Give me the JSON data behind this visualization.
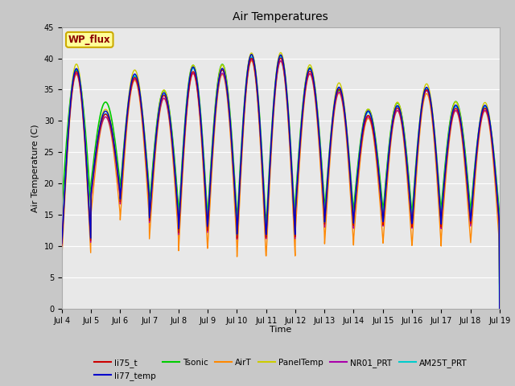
{
  "title": "Air Temperatures",
  "xlabel": "Time",
  "ylabel": "Air Temperature (C)",
  "ylim": [
    0,
    45
  ],
  "yticks": [
    0,
    5,
    10,
    15,
    20,
    25,
    30,
    35,
    40,
    45
  ],
  "date_start": 4,
  "date_end": 19,
  "n_days": 15,
  "site_label": "WP_flux",
  "series": {
    "li75_t": {
      "color": "#cc0000",
      "lw": 1.0,
      "zorder": 3
    },
    "li77_temp": {
      "color": "#0000cc",
      "lw": 1.0,
      "zorder": 4
    },
    "Tsonic": {
      "color": "#00cc00",
      "lw": 1.2,
      "zorder": 2
    },
    "AirT": {
      "color": "#ff8800",
      "lw": 1.0,
      "zorder": 2
    },
    "PanelTemp": {
      "color": "#cccc00",
      "lw": 1.0,
      "zorder": 2
    },
    "NR01_PRT": {
      "color": "#aa00aa",
      "lw": 1.0,
      "zorder": 2
    },
    "AM25T_PRT": {
      "color": "#00cccc",
      "lw": 1.2,
      "zorder": 2
    }
  },
  "legend_order": [
    "li75_t",
    "li77_temp",
    "Tsonic",
    "AirT",
    "PanelTemp",
    "NR01_PRT",
    "AM25T_PRT"
  ],
  "fig_facecolor": "#c8c8c8",
  "ax_facecolor": "#e8e8e8",
  "grid_color": "#ffffff",
  "night_base": [
    10,
    18,
    17,
    14,
    12,
    13,
    11,
    11,
    15,
    13,
    14,
    13,
    13,
    14,
    13
  ],
  "peaks_base": [
    38,
    31,
    37,
    34,
    38,
    38,
    40,
    40,
    38,
    35,
    31,
    32,
    35,
    32,
    32
  ]
}
